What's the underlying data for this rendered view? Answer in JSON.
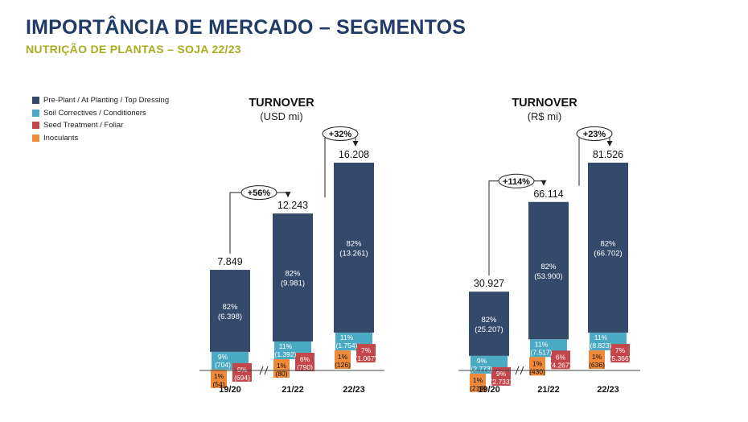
{
  "header": {
    "title": "IMPORTÂNCIA DE MERCADO – SEGMENTOS",
    "subtitle": "NUTRIÇÃO DE PLANTAS – SOJA 22/23"
  },
  "legend": {
    "items": [
      {
        "label": "Pre-Plant / At Planting / Top Dressing",
        "color": "#344a6b"
      },
      {
        "label": "Soil Correctives / Conditioners",
        "color": "#4baac3"
      },
      {
        "label": "Seed Treatment / Foliar",
        "color": "#c4464a"
      },
      {
        "label": "Inoculants",
        "color": "#ef8a3b"
      }
    ]
  },
  "chart_data": [
    {
      "type": "bar",
      "title": "TURNOVER",
      "subtitle": "(USD mi)",
      "categories": [
        "19/20",
        "21/22",
        "22/23"
      ],
      "totals": [
        "7.849",
        "12.243",
        "16.208"
      ],
      "total_values": [
        7849,
        12243,
        16208
      ],
      "growth": [
        "+56%",
        "+32%"
      ],
      "series": [
        {
          "name": "Pre-Plant / At Planting / Top Dressing",
          "values": [
            6398,
            9981,
            13261
          ],
          "labels": [
            [
              "82%",
              "(6.398)"
            ],
            [
              "82%",
              "(9.981)"
            ],
            [
              "82%",
              "(13.261)"
            ]
          ]
        },
        {
          "name": "Soil Correctives / Conditioners",
          "values": [
            704,
            1392,
            1754
          ],
          "labels": [
            [
              "9%",
              "(704)"
            ],
            [
              "11%",
              "(1.392)"
            ],
            [
              "11%",
              "(1.754)"
            ]
          ]
        },
        {
          "name": "Seed Treatment / Foliar",
          "values": [
            694,
            790,
            1067
          ],
          "labels": [
            [
              "9%",
              "(694)"
            ],
            [
              "6%",
              "(790)"
            ],
            [
              "7%",
              "(1.067)"
            ]
          ]
        },
        {
          "name": "Inoculants",
          "values": [
            54,
            80,
            126
          ],
          "labels": [
            [
              "1%",
              "(54)"
            ],
            [
              "1%",
              "(80)"
            ],
            [
              "1%",
              "(126)"
            ]
          ]
        }
      ]
    },
    {
      "type": "bar",
      "title": "TURNOVER",
      "subtitle": "(R$ mi)",
      "categories": [
        "19/20",
        "21/22",
        "22/23"
      ],
      "totals": [
        "30.927",
        "66.114",
        "81.526"
      ],
      "total_values": [
        30927,
        66114,
        81526
      ],
      "growth": [
        "+114%",
        "+23%"
      ],
      "series": [
        {
          "name": "Pre-Plant / At Planting / Top Dressing",
          "values": [
            25207,
            53900,
            66702
          ],
          "labels": [
            [
              "82%",
              "(25.207)"
            ],
            [
              "82%",
              "(53.900)"
            ],
            [
              "82%",
              "(66.702)"
            ]
          ]
        },
        {
          "name": "Soil Correctives / Conditioners",
          "values": [
            2773,
            7517,
            8823
          ],
          "labels": [
            [
              "9%",
              "(2.773)"
            ],
            [
              "11%",
              "(7.517)"
            ],
            [
              "11%",
              "(8.823)"
            ]
          ]
        },
        {
          "name": "Seed Treatment / Foliar",
          "values": [
            2733,
            4267,
            5366
          ],
          "labels": [
            [
              "9%",
              "(2.733)"
            ],
            [
              "6%",
              "(4.267)"
            ],
            [
              "7%",
              "(5.366)"
            ]
          ]
        },
        {
          "name": "Inoculants",
          "values": [
            214,
            430,
            636
          ],
          "labels": [
            [
              "1%",
              "(214)"
            ],
            [
              "1%",
              "(430)"
            ],
            [
              "1%",
              "(636)"
            ]
          ]
        }
      ]
    }
  ]
}
